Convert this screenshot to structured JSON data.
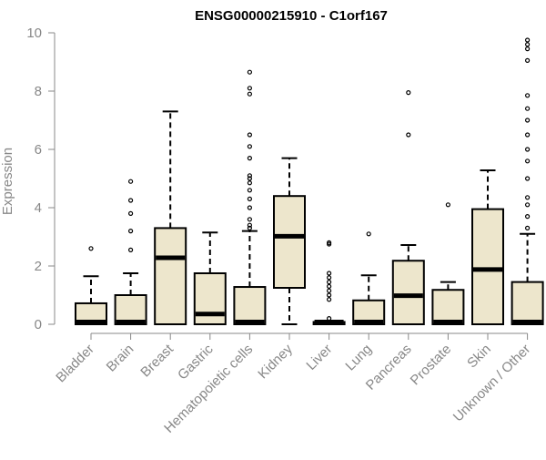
{
  "chart_data": {
    "type": "box",
    "title": "ENSG00000215910 - C1orf167",
    "xlabel": "",
    "ylabel": "Expression",
    "ylim": [
      0,
      10
    ],
    "yticks": [
      0,
      2,
      4,
      6,
      8,
      10
    ],
    "grid": false,
    "legend": "none",
    "box_fill": "#ede6cc",
    "box_stroke": "#000000",
    "axis_color": "#888888",
    "categories": [
      "Bladder",
      "Brain",
      "Breast",
      "Gastric",
      "Hematopoietic cells",
      "Kidney",
      "Liver",
      "Lung",
      "Pancreas",
      "Prostate",
      "Skin",
      "Unknown / Other"
    ],
    "boxes": [
      {
        "label": "Bladder",
        "low": 0,
        "q1": 0,
        "median": 0.02,
        "q3": 0.72,
        "high": 1.65,
        "outliers": [
          2.6
        ]
      },
      {
        "label": "Brain",
        "low": 0,
        "q1": 0,
        "median": 0.02,
        "q3": 1.0,
        "high": 1.75,
        "outliers": [
          2.55,
          3.2,
          3.8,
          4.25,
          4.9
        ]
      },
      {
        "label": "Breast",
        "low": 0,
        "q1": 0,
        "median": 2.28,
        "q3": 3.3,
        "high": 7.3,
        "outliers": []
      },
      {
        "label": "Gastric",
        "low": 0,
        "q1": 0,
        "median": 0.35,
        "q3": 1.75,
        "high": 3.15,
        "outliers": []
      },
      {
        "label": "Hematopoietic cells",
        "low": 0,
        "q1": 0,
        "median": 0.02,
        "q3": 1.28,
        "high": 3.2,
        "outliers": [
          3.3,
          3.4,
          3.6,
          4.0,
          4.3,
          4.6,
          4.85,
          5.0,
          5.1,
          5.7,
          6.1,
          6.5,
          7.9,
          8.1,
          8.65
        ]
      },
      {
        "label": "Kidney",
        "low": 0,
        "q1": 1.25,
        "median": 3.02,
        "q3": 4.4,
        "high": 5.7,
        "outliers": []
      },
      {
        "label": "Liver",
        "low": 0,
        "q1": 0,
        "median": 0.02,
        "q3": 0.08,
        "high": 0.1,
        "outliers": [
          0.2,
          0.85,
          1.0,
          1.15,
          1.3,
          1.45,
          1.6,
          1.75,
          2.75,
          2.8
        ]
      },
      {
        "label": "Lung",
        "low": 0,
        "q1": 0,
        "median": 0.02,
        "q3": 0.82,
        "high": 1.68,
        "outliers": [
          3.1
        ]
      },
      {
        "label": "Pancreas",
        "low": 0,
        "q1": 0,
        "median": 0.98,
        "q3": 2.18,
        "high": 2.72,
        "outliers": [
          6.5,
          7.95
        ]
      },
      {
        "label": "Prostate",
        "low": 0,
        "q1": 0,
        "median": 0.02,
        "q3": 1.18,
        "high": 1.45,
        "outliers": [
          4.1
        ]
      },
      {
        "label": "Skin",
        "low": 0,
        "q1": 0,
        "median": 1.88,
        "q3": 3.95,
        "high": 5.28,
        "outliers": []
      },
      {
        "label": "Unknown / Other",
        "low": 0,
        "q1": 0,
        "median": 0.02,
        "q3": 1.45,
        "high": 3.1,
        "outliers": [
          3.3,
          3.7,
          4.1,
          4.35,
          5.0,
          5.6,
          6.0,
          6.5,
          7.0,
          7.4,
          7.85,
          9.05,
          9.45,
          9.6,
          9.75
        ]
      }
    ]
  }
}
